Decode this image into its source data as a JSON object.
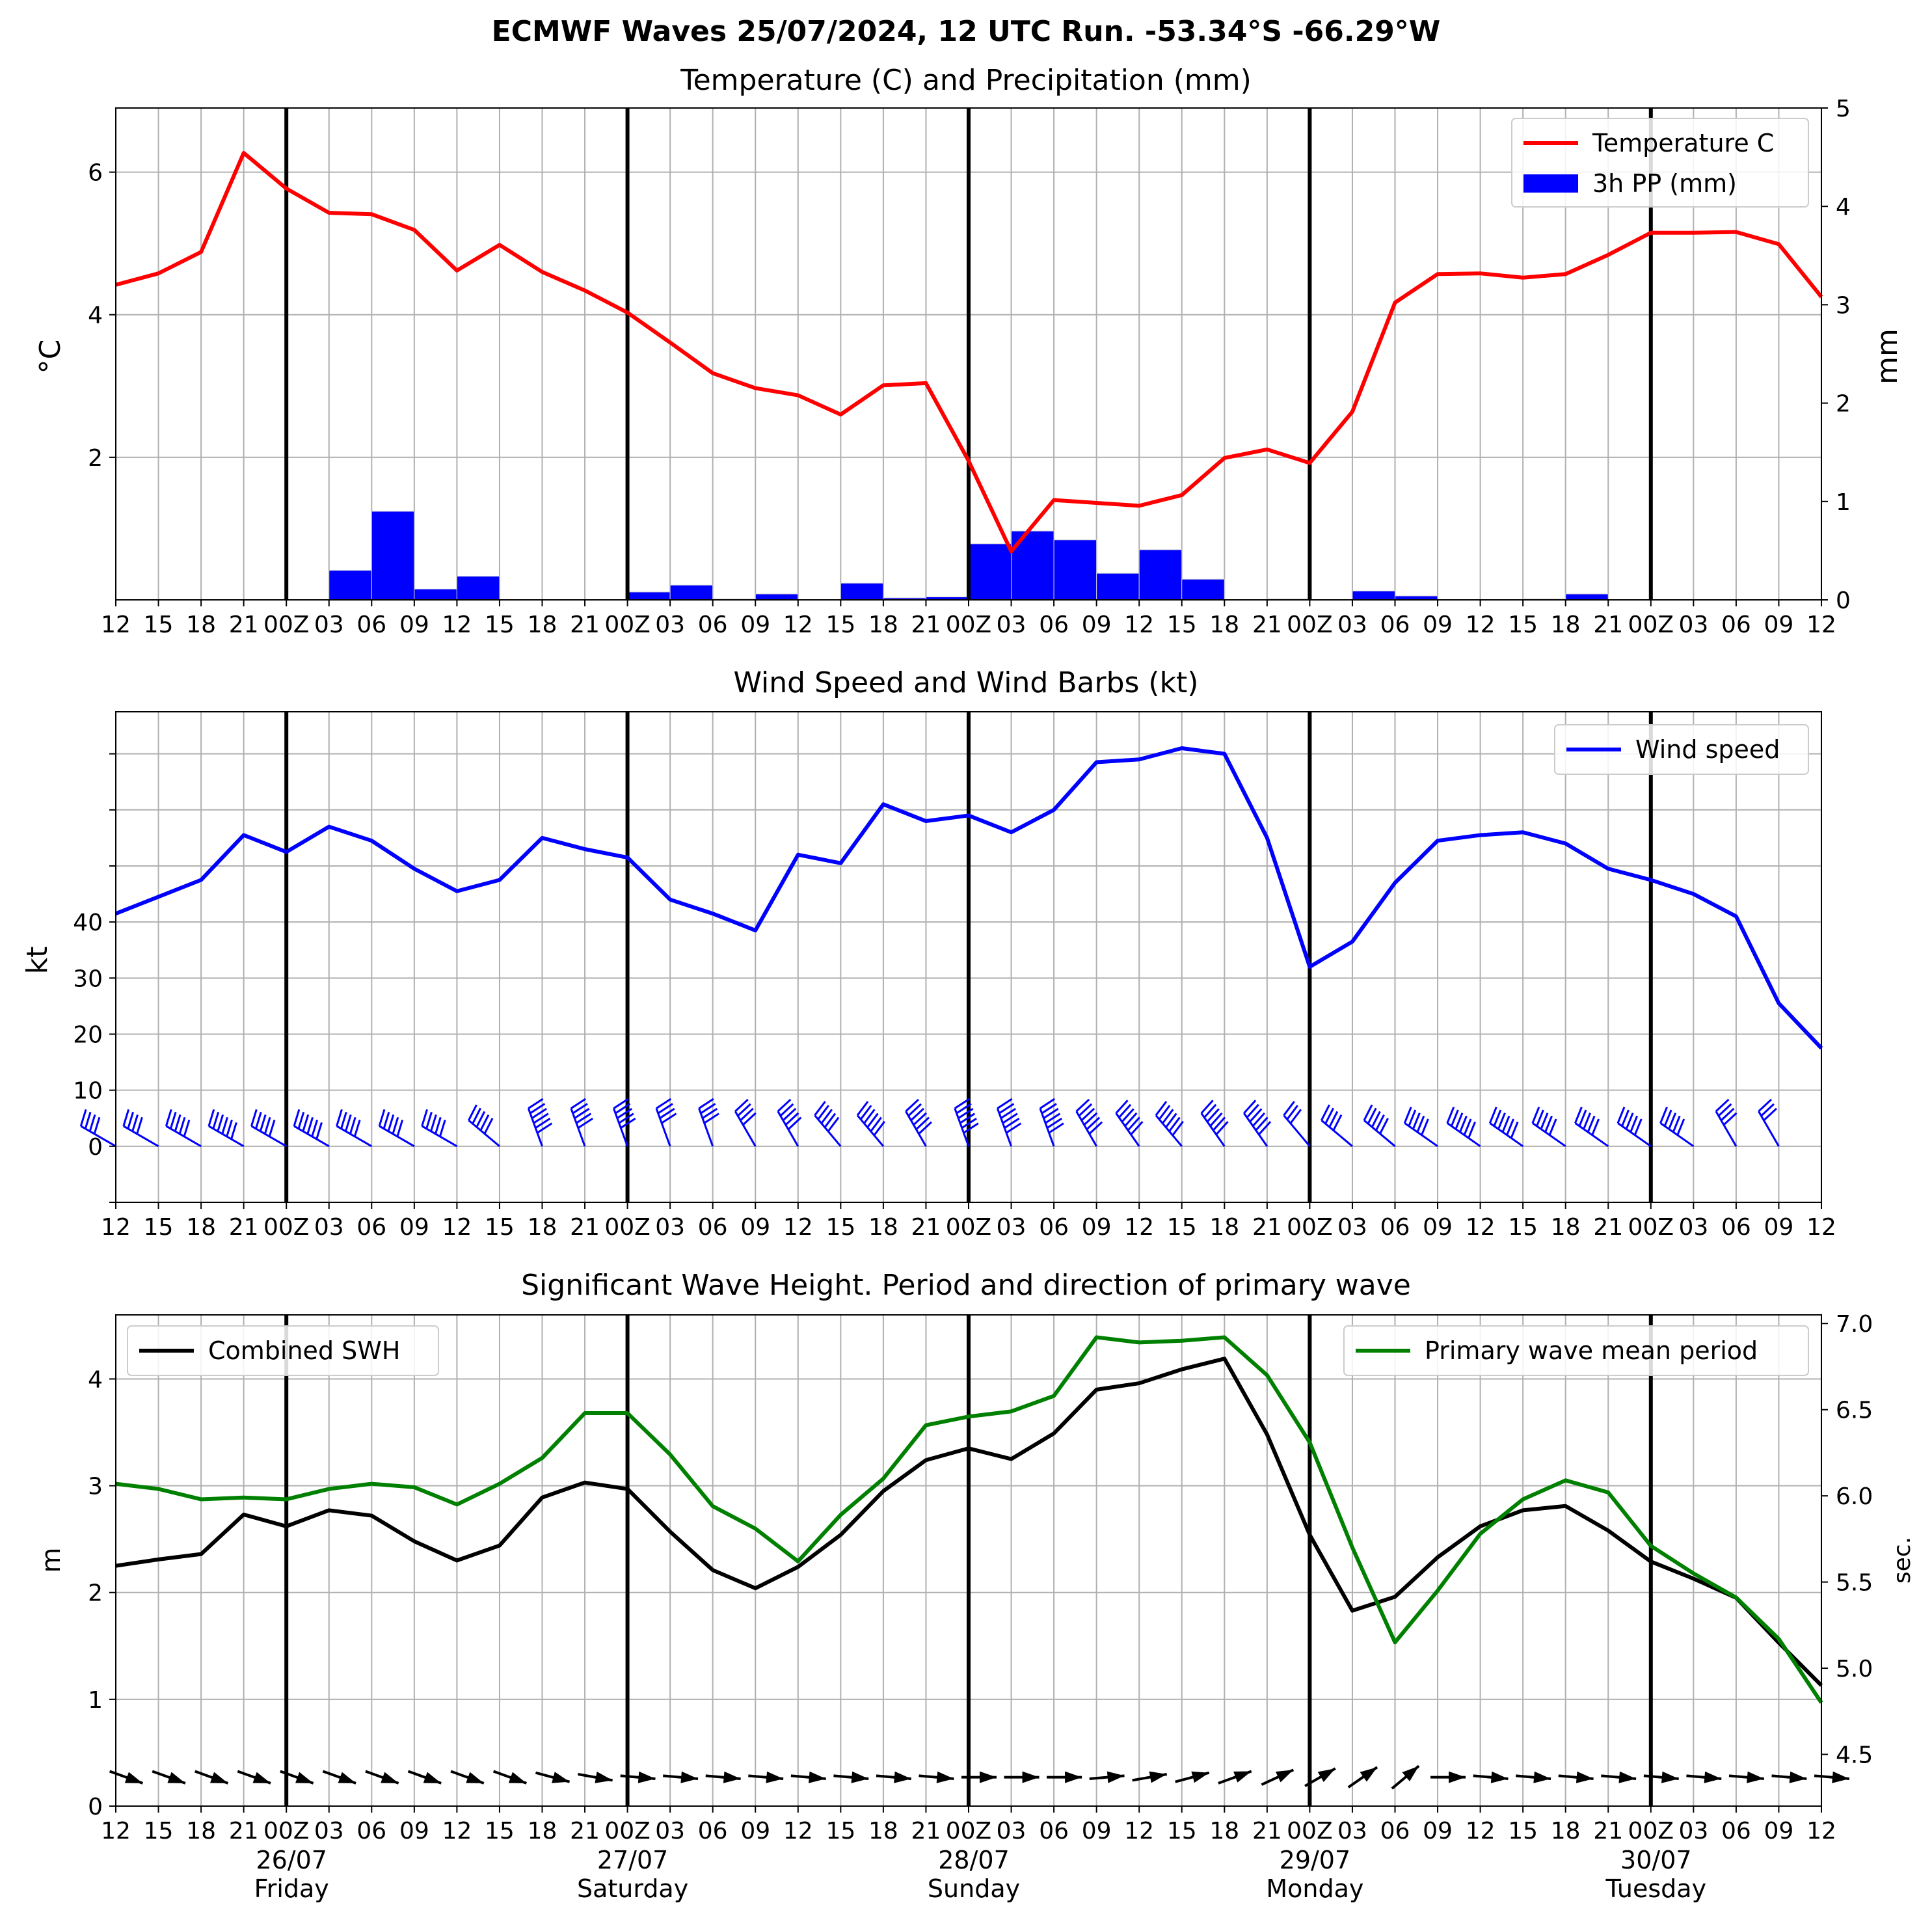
{
  "figure": {
    "suptitle": "ECMWF Waves 25/07/2024, 12 UTC Run. -53.34°S -66.29°W"
  },
  "time_ticks": [
    "12",
    "15",
    "18",
    "21",
    "00Z",
    "03",
    "06",
    "09",
    "12",
    "15",
    "18",
    "21",
    "00Z",
    "03",
    "06",
    "09",
    "12",
    "15",
    "18",
    "21",
    "00Z",
    "03",
    "06",
    "09",
    "12",
    "15",
    "18",
    "21",
    "00Z",
    "03",
    "06",
    "09",
    "12",
    "15",
    "18",
    "21",
    "00Z",
    "03",
    "06",
    "09",
    "12"
  ],
  "day_labels": [
    {
      "date": "26/07",
      "day": "Friday"
    },
    {
      "date": "27/07",
      "day": "Saturday"
    },
    {
      "date": "28/07",
      "day": "Sunday"
    },
    {
      "date": "29/07",
      "day": "Monday"
    },
    {
      "date": "30/07",
      "day": "Tuesday"
    }
  ],
  "chart_data": [
    {
      "type": "line",
      "title": "Temperature (C) and Precipitation (mm)",
      "ylabel": "°C",
      "ylabel_right": "mm",
      "ylim": [
        0,
        6.9
      ],
      "yticks": [
        2,
        4,
        6
      ],
      "ylim_right": [
        0,
        5
      ],
      "yticks_right": [
        0,
        1,
        2,
        3,
        4,
        5
      ],
      "grid": true,
      "legend_position": "upper right",
      "series": [
        {
          "name": "Temperature C",
          "color": "#ff0000",
          "values": [
            4.42,
            4.58,
            4.88,
            6.27,
            5.77,
            5.43,
            5.41,
            5.19,
            4.62,
            4.98,
            4.6,
            4.34,
            4.03,
            3.61,
            3.18,
            2.97,
            2.87,
            2.6,
            3.01,
            3.04,
            1.95,
            0.68,
            1.4,
            1.36,
            1.32,
            1.47,
            1.99,
            2.11,
            1.92,
            2.64,
            4.17,
            4.57,
            4.58,
            4.52,
            4.57,
            4.84,
            5.15,
            5.15,
            5.16,
            4.99,
            4.25
          ]
        },
        {
          "name": "3h PP (mm)",
          "type": "bar",
          "color": "#0000ff",
          "axis": "right",
          "values": [
            0,
            0,
            0,
            0,
            0,
            0,
            0.3,
            0.9,
            0.11,
            0.24,
            0,
            0,
            0,
            0.08,
            0.15,
            0.01,
            0.06,
            0,
            0.17,
            0.02,
            0.03,
            0.57,
            0.7,
            0.61,
            0.27,
            0.51,
            0.21,
            0,
            0.01,
            0,
            0.09,
            0.04,
            0,
            0,
            0.01,
            0.06,
            0,
            0,
            0,
            0,
            0
          ]
        }
      ]
    },
    {
      "type": "line",
      "title": "Wind Speed and Wind Barbs (kt)",
      "ylabel": "kt",
      "ylim": [
        -10,
        77.5
      ],
      "yticks": [
        0,
        10,
        20,
        30,
        40
      ],
      "minor_ticks": [
        50,
        60,
        70
      ],
      "grid": true,
      "legend_position": "upper right",
      "series": [
        {
          "name": "Wind speed",
          "color": "#0000ff",
          "values": [
            41.5,
            44.5,
            47.5,
            55.5,
            52.5,
            57,
            54.5,
            49.5,
            45.5,
            47.5,
            55,
            53,
            51.5,
            44,
            41.5,
            38.5,
            52,
            50.5,
            61,
            58,
            59,
            56,
            60,
            68.5,
            69,
            71,
            70,
            55,
            32,
            36.5,
            47,
            54.5,
            55.5,
            56,
            54,
            49.5,
            47.5,
            45,
            41,
            25.5,
            17.5
          ]
        }
      ],
      "barb_direction_deg": [
        300,
        300,
        300,
        300,
        300,
        300,
        300,
        300,
        300,
        310,
        340,
        340,
        340,
        340,
        340,
        330,
        330,
        320,
        320,
        330,
        340,
        340,
        340,
        330,
        325,
        320,
        325,
        325,
        320,
        310,
        310,
        305,
        305,
        305,
        305,
        305,
        305,
        305,
        330,
        330,
        null
      ]
    },
    {
      "type": "line",
      "title": "Significant Wave Height. Period and direction of primary wave",
      "ylabel": "m",
      "ylabel_right": "sec.",
      "ylim": [
        0,
        4.6
      ],
      "yticks": [
        0,
        1,
        2,
        3,
        4
      ],
      "ylim_right": [
        4.2,
        7.05
      ],
      "yticks_right": [
        4.5,
        5.0,
        5.5,
        6.0,
        6.5,
        7.0
      ],
      "grid": true,
      "series": [
        {
          "name": "Combined SWH",
          "color": "#000000",
          "values": [
            2.25,
            2.31,
            2.36,
            2.73,
            2.62,
            2.77,
            2.72,
            2.48,
            2.3,
            2.44,
            2.89,
            3.03,
            2.97,
            2.57,
            2.21,
            2.04,
            2.24,
            2.54,
            2.95,
            3.24,
            3.35,
            3.25,
            3.49,
            3.9,
            3.96,
            4.09,
            4.19,
            3.48,
            2.54,
            1.83,
            1.96,
            2.33,
            2.62,
            2.77,
            2.81,
            2.58,
            2.29,
            2.13,
            1.95,
            1.53,
            1.13
          ]
        },
        {
          "name": "Primary wave mean period",
          "color": "#008000",
          "axis": "right",
          "values": [
            6.07,
            6.04,
            5.98,
            5.99,
            5.98,
            6.04,
            6.07,
            6.05,
            5.95,
            6.07,
            6.22,
            6.48,
            6.48,
            6.24,
            5.94,
            5.81,
            5.62,
            5.89,
            6.1,
            6.41,
            6.46,
            6.49,
            6.58,
            6.92,
            6.89,
            6.9,
            6.92,
            6.7,
            6.31,
            5.7,
            5.15,
            5.45,
            5.78,
            5.98,
            6.09,
            6.02,
            5.71,
            5.55,
            5.41,
            5.17,
            4.8
          ]
        }
      ],
      "legend_position": "upper left / upper right",
      "wave_direction_deg": [
        290,
        290,
        290,
        290,
        290,
        290,
        290,
        290,
        290,
        290,
        285,
        280,
        275,
        275,
        275,
        275,
        275,
        275,
        275,
        275,
        270,
        270,
        270,
        265,
        260,
        255,
        250,
        245,
        240,
        235,
        230,
        270,
        275,
        275,
        275,
        275,
        275,
        275,
        275,
        275,
        275
      ]
    }
  ]
}
